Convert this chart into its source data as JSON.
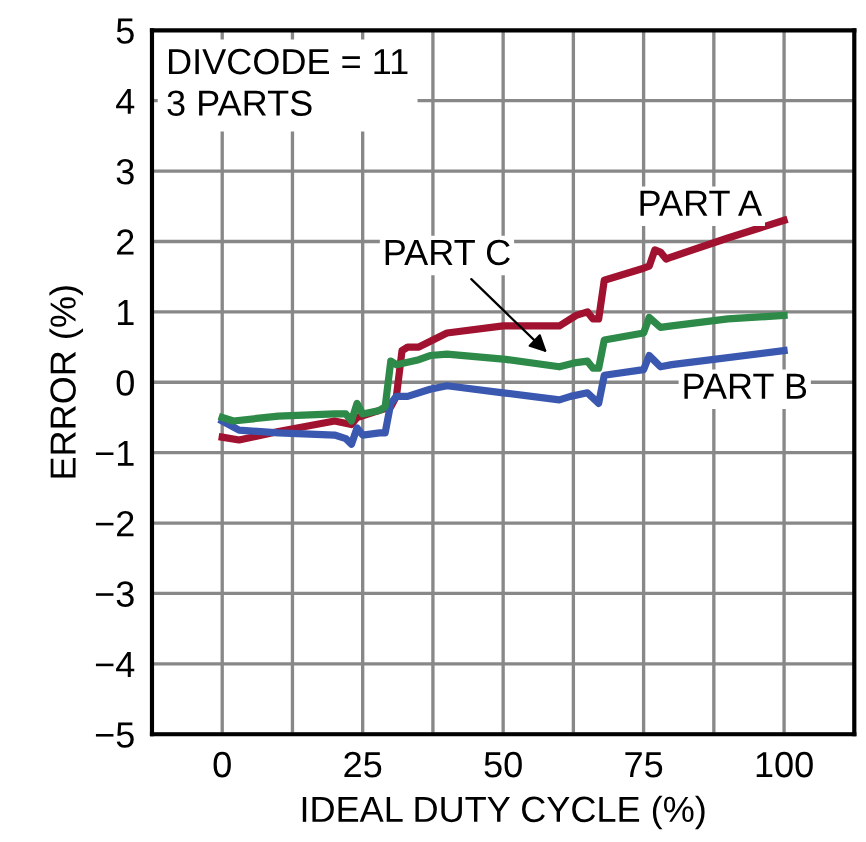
{
  "chart_data": {
    "type": "line",
    "xlabel": "IDEAL DUTY CYCLE (%)",
    "ylabel": "ERROR (%)",
    "xlim": [
      -12.5,
      112.5
    ],
    "ylim": [
      -5,
      5
    ],
    "xticks": [
      {
        "value": -12.5,
        "label": null
      },
      0,
      {
        "value": 12.5,
        "label": null
      },
      25,
      {
        "value": 37.5,
        "label": null
      },
      50,
      {
        "value": 62.5,
        "label": null
      },
      75,
      {
        "value": 87.5,
        "label": null
      },
      100,
      {
        "value": 112.5,
        "label": null
      }
    ],
    "yticks": [
      {
        "value": -5,
        "label": "−5"
      },
      {
        "value": -4,
        "label": "−4"
      },
      {
        "value": -3,
        "label": "−3"
      },
      {
        "value": -2,
        "label": "−2"
      },
      {
        "value": -1,
        "label": "−1"
      },
      0,
      1,
      2,
      3,
      4,
      5
    ],
    "grid": true,
    "legend": false,
    "marker": "none",
    "line_style": "solid",
    "annotations": [
      "DIVCODE = 11\n3 PARTS"
    ],
    "series": [
      {
        "name": "PART A",
        "color": "#a0122f",
        "x": [
          0,
          3,
          10,
          20,
          23,
          24,
          28,
          30,
          31,
          32,
          33,
          35,
          40,
          50,
          55,
          60,
          63,
          65,
          66,
          67,
          68,
          75,
          76,
          77,
          78,
          79,
          80,
          90,
          100
        ],
        "values": [
          -0.78,
          -0.82,
          -0.7,
          -0.55,
          -0.6,
          -0.5,
          -0.4,
          -0.35,
          -0.2,
          0.45,
          0.5,
          0.5,
          0.7,
          0.8,
          0.8,
          0.8,
          0.95,
          1.0,
          0.9,
          0.9,
          1.45,
          1.62,
          1.65,
          1.88,
          1.85,
          1.75,
          1.78,
          2.05,
          2.3
        ]
      },
      {
        "name": "PART B",
        "color": "#3a58b0",
        "x": [
          0,
          3,
          10,
          20,
          22,
          23,
          24,
          25,
          28,
          29,
          30,
          31,
          33,
          37,
          40,
          50,
          60,
          62,
          65,
          67,
          68,
          75,
          76,
          77,
          78,
          80,
          100
        ],
        "values": [
          -0.55,
          -0.68,
          -0.72,
          -0.75,
          -0.8,
          -0.88,
          -0.65,
          -0.75,
          -0.72,
          -0.72,
          -0.3,
          -0.2,
          -0.2,
          -0.1,
          -0.05,
          -0.15,
          -0.25,
          -0.2,
          -0.15,
          -0.3,
          0.1,
          0.18,
          0.38,
          0.3,
          0.22,
          0.25,
          0.45
        ]
      },
      {
        "name": "PART C",
        "color": "#2e8a48",
        "x": [
          0,
          2,
          10,
          20,
          22,
          23,
          24,
          25,
          28,
          29,
          30,
          31,
          35,
          37,
          40,
          50,
          60,
          63,
          65,
          66,
          67,
          68,
          75,
          76,
          78,
          80,
          90,
          100
        ],
        "values": [
          -0.5,
          -0.55,
          -0.48,
          -0.45,
          -0.45,
          -0.55,
          -0.3,
          -0.45,
          -0.4,
          -0.35,
          0.3,
          0.25,
          0.32,
          0.38,
          0.4,
          0.33,
          0.22,
          0.28,
          0.3,
          0.2,
          0.2,
          0.6,
          0.7,
          0.92,
          0.78,
          0.8,
          0.9,
          0.95
        ]
      }
    ]
  }
}
